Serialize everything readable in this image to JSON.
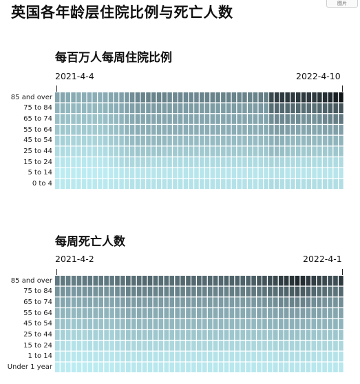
{
  "page_title": "英国各年龄层住院比例与死亡人数",
  "top_button": "图片",
  "colors": {
    "low": "#bff0f5",
    "mid": "#7a98a1",
    "high": "#0f1417"
  },
  "chart_data": [
    {
      "type": "heatmap",
      "title": "每百万人每周住院比例",
      "x_start_label": "2021-4-4",
      "x_end_label": "2022-4-10",
      "rows": [
        "85 and over",
        "75 to 84",
        "65 to 74",
        "55 to 64",
        "45 to 54",
        "25 to 44",
        "15 to 24",
        "5 to 14",
        "0 to 4"
      ],
      "weeks": 54,
      "values": [
        [
          0.42,
          0.42,
          0.4,
          0.4,
          0.38,
          0.38,
          0.38,
          0.38,
          0.38,
          0.4,
          0.42,
          0.44,
          0.46,
          0.5,
          0.54,
          0.56,
          0.58,
          0.58,
          0.58,
          0.58,
          0.58,
          0.56,
          0.56,
          0.56,
          0.56,
          0.56,
          0.56,
          0.58,
          0.58,
          0.58,
          0.58,
          0.58,
          0.58,
          0.58,
          0.58,
          0.58,
          0.58,
          0.58,
          0.6,
          0.6,
          0.8,
          0.84,
          0.86,
          0.86,
          0.86,
          0.86,
          0.86,
          0.86,
          0.86,
          0.88,
          0.9,
          0.92,
          0.96,
          1.0
        ],
        [
          0.34,
          0.34,
          0.32,
          0.32,
          0.32,
          0.32,
          0.32,
          0.32,
          0.32,
          0.34,
          0.36,
          0.38,
          0.4,
          0.44,
          0.46,
          0.48,
          0.48,
          0.48,
          0.48,
          0.48,
          0.48,
          0.48,
          0.48,
          0.48,
          0.48,
          0.48,
          0.48,
          0.48,
          0.48,
          0.48,
          0.48,
          0.48,
          0.48,
          0.48,
          0.48,
          0.48,
          0.48,
          0.48,
          0.5,
          0.5,
          0.66,
          0.68,
          0.68,
          0.68,
          0.68,
          0.68,
          0.66,
          0.66,
          0.66,
          0.68,
          0.7,
          0.72,
          0.74,
          0.76
        ],
        [
          0.28,
          0.28,
          0.26,
          0.26,
          0.26,
          0.26,
          0.26,
          0.26,
          0.26,
          0.28,
          0.3,
          0.32,
          0.34,
          0.38,
          0.4,
          0.42,
          0.42,
          0.42,
          0.42,
          0.42,
          0.42,
          0.42,
          0.42,
          0.42,
          0.42,
          0.42,
          0.42,
          0.42,
          0.42,
          0.42,
          0.42,
          0.42,
          0.42,
          0.42,
          0.42,
          0.42,
          0.42,
          0.42,
          0.42,
          0.44,
          0.54,
          0.56,
          0.56,
          0.56,
          0.54,
          0.54,
          0.52,
          0.52,
          0.52,
          0.54,
          0.56,
          0.58,
          0.6,
          0.62
        ],
        [
          0.24,
          0.24,
          0.22,
          0.22,
          0.22,
          0.22,
          0.22,
          0.22,
          0.22,
          0.24,
          0.26,
          0.28,
          0.3,
          0.34,
          0.36,
          0.38,
          0.38,
          0.38,
          0.38,
          0.38,
          0.38,
          0.38,
          0.38,
          0.38,
          0.38,
          0.38,
          0.38,
          0.38,
          0.38,
          0.38,
          0.38,
          0.38,
          0.38,
          0.38,
          0.38,
          0.38,
          0.38,
          0.38,
          0.38,
          0.4,
          0.46,
          0.48,
          0.48,
          0.46,
          0.44,
          0.42,
          0.42,
          0.42,
          0.42,
          0.42,
          0.44,
          0.44,
          0.46,
          0.46
        ],
        [
          0.18,
          0.18,
          0.16,
          0.16,
          0.16,
          0.16,
          0.16,
          0.16,
          0.16,
          0.18,
          0.2,
          0.22,
          0.24,
          0.28,
          0.3,
          0.32,
          0.32,
          0.32,
          0.32,
          0.32,
          0.32,
          0.3,
          0.3,
          0.3,
          0.3,
          0.3,
          0.3,
          0.3,
          0.3,
          0.3,
          0.3,
          0.3,
          0.3,
          0.3,
          0.3,
          0.3,
          0.3,
          0.3,
          0.3,
          0.32,
          0.36,
          0.38,
          0.36,
          0.34,
          0.32,
          0.32,
          0.32,
          0.32,
          0.32,
          0.32,
          0.32,
          0.34,
          0.34,
          0.34
        ],
        [
          0.12,
          0.12,
          0.1,
          0.1,
          0.1,
          0.1,
          0.1,
          0.1,
          0.1,
          0.12,
          0.14,
          0.16,
          0.18,
          0.2,
          0.22,
          0.24,
          0.24,
          0.24,
          0.24,
          0.24,
          0.22,
          0.22,
          0.22,
          0.22,
          0.22,
          0.22,
          0.22,
          0.22,
          0.22,
          0.22,
          0.22,
          0.22,
          0.22,
          0.22,
          0.22,
          0.22,
          0.22,
          0.22,
          0.22,
          0.24,
          0.3,
          0.3,
          0.28,
          0.26,
          0.24,
          0.24,
          0.22,
          0.22,
          0.22,
          0.22,
          0.22,
          0.22,
          0.24,
          0.24
        ],
        [
          0.06,
          0.06,
          0.05,
          0.05,
          0.05,
          0.05,
          0.05,
          0.05,
          0.05,
          0.06,
          0.08,
          0.1,
          0.12,
          0.14,
          0.14,
          0.14,
          0.14,
          0.14,
          0.12,
          0.12,
          0.12,
          0.12,
          0.12,
          0.12,
          0.12,
          0.12,
          0.12,
          0.12,
          0.12,
          0.12,
          0.12,
          0.12,
          0.12,
          0.12,
          0.12,
          0.12,
          0.12,
          0.12,
          0.12,
          0.14,
          0.16,
          0.16,
          0.14,
          0.14,
          0.12,
          0.12,
          0.12,
          0.12,
          0.12,
          0.12,
          0.12,
          0.12,
          0.12,
          0.12
        ],
        [
          0.02,
          0.02,
          0.02,
          0.02,
          0.02,
          0.02,
          0.02,
          0.02,
          0.02,
          0.02,
          0.03,
          0.04,
          0.05,
          0.06,
          0.06,
          0.06,
          0.06,
          0.06,
          0.06,
          0.06,
          0.06,
          0.06,
          0.06,
          0.06,
          0.06,
          0.06,
          0.06,
          0.06,
          0.06,
          0.06,
          0.06,
          0.06,
          0.06,
          0.06,
          0.06,
          0.06,
          0.06,
          0.06,
          0.06,
          0.06,
          0.08,
          0.08,
          0.08,
          0.06,
          0.06,
          0.06,
          0.06,
          0.06,
          0.06,
          0.06,
          0.06,
          0.06,
          0.06,
          0.06
        ],
        [
          0.04,
          0.04,
          0.04,
          0.04,
          0.04,
          0.04,
          0.04,
          0.04,
          0.04,
          0.04,
          0.05,
          0.06,
          0.06,
          0.07,
          0.08,
          0.08,
          0.08,
          0.08,
          0.08,
          0.08,
          0.08,
          0.08,
          0.08,
          0.08,
          0.08,
          0.08,
          0.08,
          0.08,
          0.08,
          0.08,
          0.08,
          0.08,
          0.08,
          0.08,
          0.08,
          0.08,
          0.08,
          0.08,
          0.08,
          0.1,
          0.12,
          0.12,
          0.1,
          0.1,
          0.1,
          0.1,
          0.1,
          0.1,
          0.1,
          0.1,
          0.1,
          0.1,
          0.1,
          0.1
        ]
      ]
    },
    {
      "type": "heatmap",
      "title": "每周死亡人数",
      "x_start_label": "2021-4-2",
      "x_end_label": "2022-4-1",
      "rows": [
        "85 and over",
        "75 to 84",
        "65 to 74",
        "55 to 64",
        "45 to 54",
        "25 to 44",
        "15 to 24",
        "1 to 14",
        "Under 1 year"
      ],
      "weeks": 53,
      "values": [
        [
          0.62,
          0.62,
          0.6,
          0.6,
          0.6,
          0.62,
          0.62,
          0.62,
          0.62,
          0.62,
          0.62,
          0.64,
          0.64,
          0.66,
          0.66,
          0.66,
          0.68,
          0.68,
          0.66,
          0.66,
          0.66,
          0.66,
          0.66,
          0.68,
          0.68,
          0.68,
          0.68,
          0.68,
          0.68,
          0.68,
          0.68,
          0.7,
          0.7,
          0.7,
          0.7,
          0.7,
          0.72,
          0.74,
          0.76,
          0.78,
          0.8,
          0.84,
          0.86,
          0.88,
          0.92,
          0.9,
          0.86,
          0.84,
          0.82,
          0.8,
          0.78,
          0.78,
          0.86
        ],
        [
          0.52,
          0.52,
          0.5,
          0.5,
          0.5,
          0.52,
          0.52,
          0.52,
          0.52,
          0.52,
          0.52,
          0.54,
          0.56,
          0.58,
          0.58,
          0.58,
          0.58,
          0.58,
          0.58,
          0.58,
          0.58,
          0.58,
          0.58,
          0.58,
          0.58,
          0.58,
          0.58,
          0.58,
          0.58,
          0.58,
          0.58,
          0.58,
          0.6,
          0.6,
          0.6,
          0.6,
          0.62,
          0.62,
          0.64,
          0.66,
          0.66,
          0.68,
          0.7,
          0.72,
          0.74,
          0.72,
          0.7,
          0.68,
          0.66,
          0.66,
          0.64,
          0.64,
          0.68
        ],
        [
          0.42,
          0.42,
          0.4,
          0.4,
          0.4,
          0.42,
          0.42,
          0.42,
          0.42,
          0.42,
          0.42,
          0.44,
          0.46,
          0.48,
          0.48,
          0.48,
          0.48,
          0.48,
          0.48,
          0.48,
          0.48,
          0.48,
          0.48,
          0.48,
          0.48,
          0.48,
          0.48,
          0.48,
          0.48,
          0.48,
          0.48,
          0.48,
          0.48,
          0.48,
          0.48,
          0.48,
          0.5,
          0.5,
          0.52,
          0.52,
          0.54,
          0.56,
          0.56,
          0.58,
          0.58,
          0.58,
          0.56,
          0.54,
          0.54,
          0.52,
          0.52,
          0.52,
          0.54
        ],
        [
          0.34,
          0.34,
          0.32,
          0.32,
          0.32,
          0.34,
          0.34,
          0.34,
          0.34,
          0.34,
          0.34,
          0.36,
          0.38,
          0.4,
          0.4,
          0.4,
          0.4,
          0.4,
          0.4,
          0.4,
          0.4,
          0.4,
          0.4,
          0.4,
          0.4,
          0.4,
          0.4,
          0.4,
          0.4,
          0.4,
          0.4,
          0.4,
          0.4,
          0.4,
          0.4,
          0.4,
          0.4,
          0.42,
          0.42,
          0.42,
          0.44,
          0.44,
          0.46,
          0.46,
          0.46,
          0.46,
          0.44,
          0.44,
          0.44,
          0.42,
          0.42,
          0.42,
          0.44
        ],
        [
          0.26,
          0.26,
          0.24,
          0.24,
          0.24,
          0.26,
          0.26,
          0.26,
          0.26,
          0.26,
          0.26,
          0.28,
          0.3,
          0.32,
          0.32,
          0.32,
          0.32,
          0.32,
          0.32,
          0.32,
          0.32,
          0.32,
          0.32,
          0.32,
          0.32,
          0.32,
          0.32,
          0.32,
          0.32,
          0.32,
          0.32,
          0.32,
          0.32,
          0.32,
          0.32,
          0.32,
          0.32,
          0.32,
          0.34,
          0.34,
          0.34,
          0.36,
          0.36,
          0.36,
          0.36,
          0.36,
          0.34,
          0.34,
          0.34,
          0.34,
          0.34,
          0.34,
          0.34
        ],
        [
          0.18,
          0.18,
          0.16,
          0.16,
          0.16,
          0.16,
          0.18,
          0.18,
          0.18,
          0.18,
          0.18,
          0.2,
          0.22,
          0.24,
          0.24,
          0.24,
          0.24,
          0.24,
          0.24,
          0.24,
          0.24,
          0.24,
          0.24,
          0.24,
          0.24,
          0.24,
          0.24,
          0.24,
          0.24,
          0.24,
          0.24,
          0.24,
          0.24,
          0.24,
          0.24,
          0.24,
          0.24,
          0.24,
          0.24,
          0.24,
          0.26,
          0.26,
          0.26,
          0.26,
          0.26,
          0.26,
          0.26,
          0.24,
          0.24,
          0.24,
          0.24,
          0.24,
          0.24
        ],
        [
          0.1,
          0.1,
          0.08,
          0.08,
          0.08,
          0.08,
          0.1,
          0.1,
          0.1,
          0.1,
          0.1,
          0.12,
          0.12,
          0.14,
          0.14,
          0.14,
          0.14,
          0.14,
          0.14,
          0.14,
          0.14,
          0.14,
          0.14,
          0.14,
          0.14,
          0.14,
          0.14,
          0.14,
          0.14,
          0.14,
          0.14,
          0.14,
          0.14,
          0.14,
          0.14,
          0.14,
          0.14,
          0.14,
          0.14,
          0.14,
          0.16,
          0.16,
          0.16,
          0.16,
          0.16,
          0.16,
          0.16,
          0.14,
          0.14,
          0.14,
          0.14,
          0.14,
          0.14
        ],
        [
          0.06,
          0.06,
          0.05,
          0.05,
          0.05,
          0.05,
          0.06,
          0.06,
          0.06,
          0.06,
          0.06,
          0.07,
          0.08,
          0.08,
          0.08,
          0.08,
          0.08,
          0.08,
          0.08,
          0.08,
          0.08,
          0.08,
          0.08,
          0.08,
          0.08,
          0.08,
          0.08,
          0.08,
          0.08,
          0.08,
          0.08,
          0.08,
          0.08,
          0.08,
          0.08,
          0.08,
          0.08,
          0.08,
          0.08,
          0.08,
          0.09,
          0.1,
          0.1,
          0.1,
          0.1,
          0.1,
          0.1,
          0.09,
          0.08,
          0.08,
          0.08,
          0.08,
          0.08
        ],
        [
          0.03,
          0.03,
          0.02,
          0.02,
          0.02,
          0.02,
          0.03,
          0.03,
          0.03,
          0.03,
          0.03,
          0.04,
          0.04,
          0.05,
          0.05,
          0.05,
          0.05,
          0.05,
          0.05,
          0.05,
          0.05,
          0.05,
          0.05,
          0.05,
          0.05,
          0.05,
          0.05,
          0.05,
          0.05,
          0.05,
          0.05,
          0.05,
          0.05,
          0.05,
          0.05,
          0.05,
          0.05,
          0.05,
          0.05,
          0.05,
          0.06,
          0.06,
          0.06,
          0.06,
          0.06,
          0.06,
          0.06,
          0.05,
          0.05,
          0.05,
          0.05,
          0.05,
          0.05
        ]
      ]
    }
  ]
}
